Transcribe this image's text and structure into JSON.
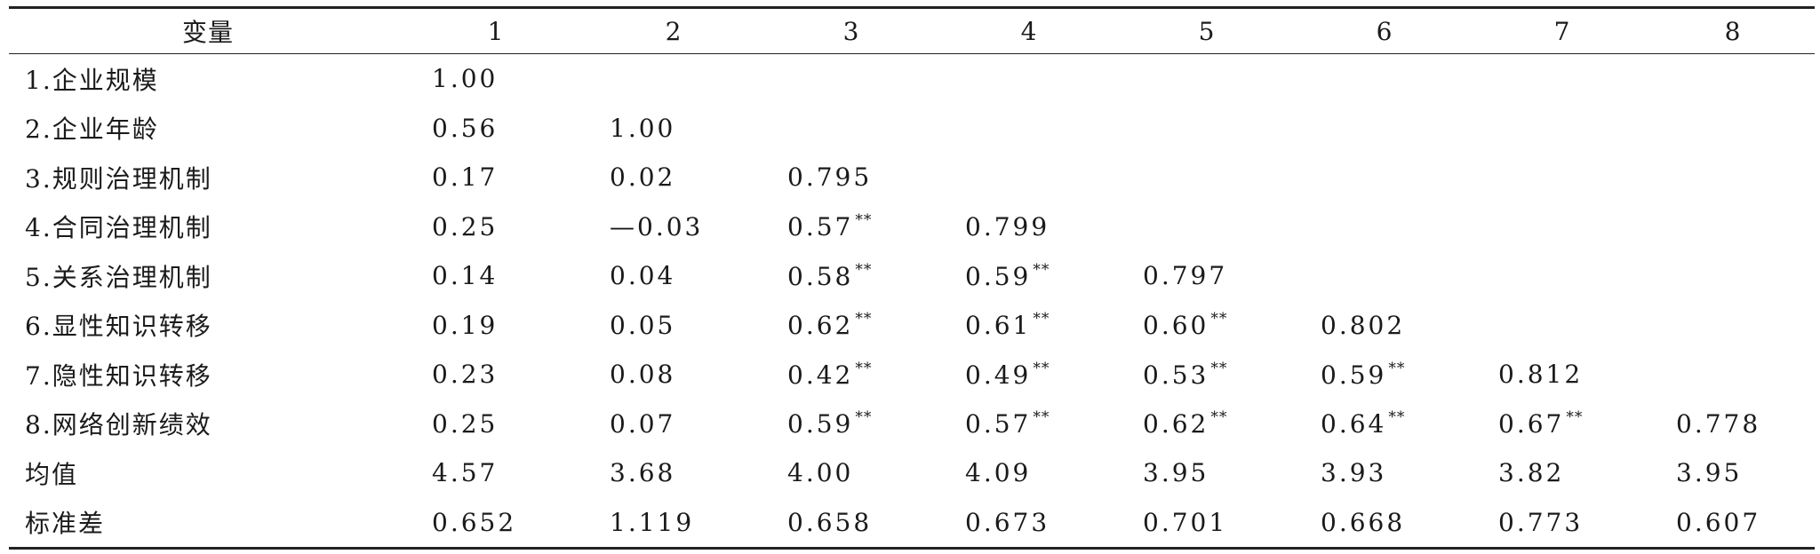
{
  "table": {
    "headers": [
      "变量",
      "1",
      "2",
      "3",
      "4",
      "5",
      "6",
      "7",
      "8"
    ],
    "rows": [
      {
        "label": "1.企业规模",
        "cells": [
          {
            "v": "1.00",
            "sig": ""
          },
          {
            "v": "",
            "sig": ""
          },
          {
            "v": "",
            "sig": ""
          },
          {
            "v": "",
            "sig": ""
          },
          {
            "v": "",
            "sig": ""
          },
          {
            "v": "",
            "sig": ""
          },
          {
            "v": "",
            "sig": ""
          },
          {
            "v": "",
            "sig": ""
          }
        ]
      },
      {
        "label": "2.企业年龄",
        "cells": [
          {
            "v": "0.56",
            "sig": ""
          },
          {
            "v": "1.00",
            "sig": ""
          },
          {
            "v": "",
            "sig": ""
          },
          {
            "v": "",
            "sig": ""
          },
          {
            "v": "",
            "sig": ""
          },
          {
            "v": "",
            "sig": ""
          },
          {
            "v": "",
            "sig": ""
          },
          {
            "v": "",
            "sig": ""
          }
        ]
      },
      {
        "label": "3.规则治理机制",
        "cells": [
          {
            "v": "0.17",
            "sig": ""
          },
          {
            "v": "0.02",
            "sig": ""
          },
          {
            "v": "0.795",
            "sig": ""
          },
          {
            "v": "",
            "sig": ""
          },
          {
            "v": "",
            "sig": ""
          },
          {
            "v": "",
            "sig": ""
          },
          {
            "v": "",
            "sig": ""
          },
          {
            "v": "",
            "sig": ""
          }
        ]
      },
      {
        "label": "4.合同治理机制",
        "cells": [
          {
            "v": "0.25",
            "sig": ""
          },
          {
            "v": "—0.03",
            "sig": ""
          },
          {
            "v": "0.57",
            "sig": "**"
          },
          {
            "v": "0.799",
            "sig": ""
          },
          {
            "v": "",
            "sig": ""
          },
          {
            "v": "",
            "sig": ""
          },
          {
            "v": "",
            "sig": ""
          },
          {
            "v": "",
            "sig": ""
          }
        ]
      },
      {
        "label": "5.关系治理机制",
        "cells": [
          {
            "v": "0.14",
            "sig": ""
          },
          {
            "v": "0.04",
            "sig": ""
          },
          {
            "v": "0.58",
            "sig": "**"
          },
          {
            "v": "0.59",
            "sig": "**"
          },
          {
            "v": "0.797",
            "sig": ""
          },
          {
            "v": "",
            "sig": ""
          },
          {
            "v": "",
            "sig": ""
          },
          {
            "v": "",
            "sig": ""
          }
        ]
      },
      {
        "label": "6.显性知识转移",
        "cells": [
          {
            "v": "0.19",
            "sig": ""
          },
          {
            "v": "0.05",
            "sig": ""
          },
          {
            "v": "0.62",
            "sig": "**"
          },
          {
            "v": "0.61",
            "sig": "**"
          },
          {
            "v": "0.60",
            "sig": "**"
          },
          {
            "v": "0.802",
            "sig": ""
          },
          {
            "v": "",
            "sig": ""
          },
          {
            "v": "",
            "sig": ""
          }
        ]
      },
      {
        "label": "7.隐性知识转移",
        "cells": [
          {
            "v": "0.23",
            "sig": ""
          },
          {
            "v": "0.08",
            "sig": ""
          },
          {
            "v": "0.42",
            "sig": "**"
          },
          {
            "v": "0.49",
            "sig": "**"
          },
          {
            "v": "0.53",
            "sig": "**"
          },
          {
            "v": "0.59",
            "sig": "**"
          },
          {
            "v": "0.812",
            "sig": ""
          },
          {
            "v": "",
            "sig": ""
          }
        ]
      },
      {
        "label": "8.网络创新绩效",
        "cells": [
          {
            "v": "0.25",
            "sig": ""
          },
          {
            "v": "0.07",
            "sig": ""
          },
          {
            "v": "0.59",
            "sig": "**"
          },
          {
            "v": "0.57",
            "sig": "**"
          },
          {
            "v": "0.62",
            "sig": "**"
          },
          {
            "v": "0.64",
            "sig": "**"
          },
          {
            "v": "0.67",
            "sig": "**"
          },
          {
            "v": "0.778",
            "sig": ""
          }
        ]
      },
      {
        "label": "均值",
        "cells": [
          {
            "v": "4.57",
            "sig": ""
          },
          {
            "v": "3.68",
            "sig": ""
          },
          {
            "v": "4.00",
            "sig": ""
          },
          {
            "v": "4.09",
            "sig": ""
          },
          {
            "v": "3.95",
            "sig": ""
          },
          {
            "v": "3.93",
            "sig": ""
          },
          {
            "v": "3.82",
            "sig": ""
          },
          {
            "v": "3.95",
            "sig": ""
          }
        ]
      },
      {
        "label": "标准差",
        "cells": [
          {
            "v": "0.652",
            "sig": ""
          },
          {
            "v": "1.119",
            "sig": ""
          },
          {
            "v": "0.658",
            "sig": ""
          },
          {
            "v": "0.673",
            "sig": ""
          },
          {
            "v": "0.701",
            "sig": ""
          },
          {
            "v": "0.668",
            "sig": ""
          },
          {
            "v": "0.773",
            "sig": ""
          },
          {
            "v": "0.607",
            "sig": ""
          }
        ]
      }
    ]
  }
}
